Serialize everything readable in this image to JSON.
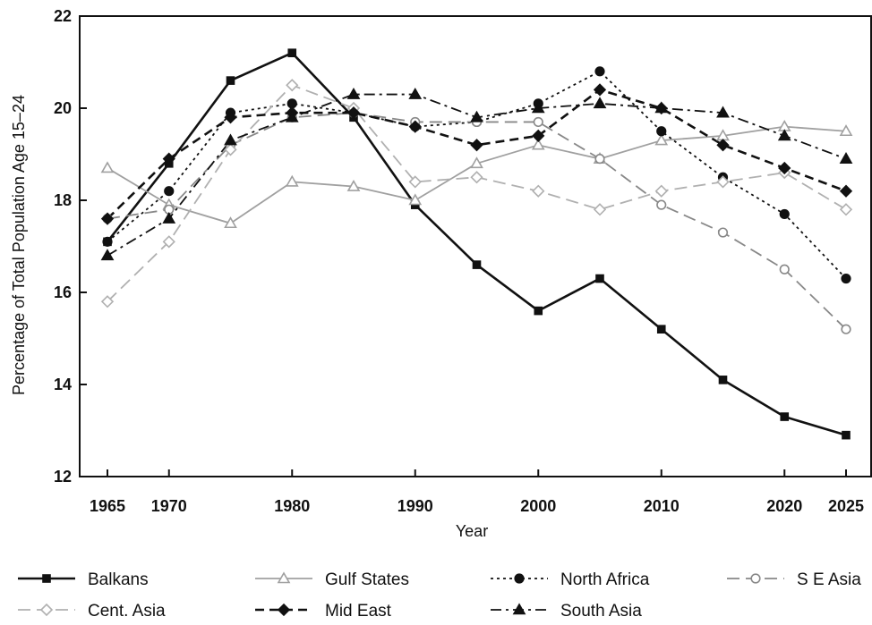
{
  "chart_data": {
    "type": "line",
    "title": "",
    "xlabel": "Year",
    "ylabel": "Percentage of Total Population Age 15–24",
    "ylim": [
      12,
      22
    ],
    "yticks": [
      12,
      14,
      16,
      18,
      20,
      22
    ],
    "xticks": [
      1965,
      1970,
      1980,
      1990,
      2000,
      2010,
      2020,
      2025
    ],
    "x": [
      1965,
      1970,
      1975,
      1980,
      1985,
      1990,
      1995,
      2000,
      2005,
      2010,
      2015,
      2020,
      2025
    ],
    "grid": false,
    "legend_position": "bottom",
    "series": [
      {
        "name": "Balkans",
        "color": "#111111",
        "dash": "solid",
        "marker": "filled-square",
        "stroke_width": "heavy",
        "values": [
          17.1,
          18.8,
          20.6,
          21.2,
          19.8,
          17.9,
          16.6,
          15.6,
          16.3,
          15.2,
          14.1,
          13.3,
          12.9
        ]
      },
      {
        "name": "Gulf States",
        "color": "#a0a0a0",
        "dash": "solid",
        "marker": "open-triangle",
        "stroke_width": "normal",
        "values": [
          18.7,
          17.9,
          17.5,
          18.4,
          18.3,
          18.0,
          18.8,
          19.2,
          18.9,
          19.3,
          19.4,
          19.6,
          19.5
        ]
      },
      {
        "name": "North Africa",
        "color": "#111111",
        "dash": "dotted",
        "marker": "filled-circle",
        "stroke_width": "normal",
        "values": [
          17.1,
          18.2,
          19.9,
          20.1,
          19.9,
          19.6,
          19.7,
          20.1,
          20.8,
          19.5,
          18.5,
          17.7,
          16.3
        ]
      },
      {
        "name": "S E Asia",
        "color": "#888888",
        "dash": "long-dash",
        "marker": "open-circle",
        "stroke_width": "normal",
        "values": [
          17.6,
          17.8,
          19.2,
          19.8,
          19.9,
          19.7,
          19.7,
          19.7,
          18.9,
          17.9,
          17.3,
          16.5,
          15.2
        ]
      },
      {
        "name": "Cent. Asia",
        "color": "#b0b0b0",
        "dash": "long-dash",
        "marker": "open-diamond",
        "stroke_width": "normal",
        "values": [
          15.8,
          17.1,
          19.1,
          20.5,
          20.0,
          18.4,
          18.5,
          18.2,
          17.8,
          18.2,
          18.4,
          18.6,
          17.8
        ]
      },
      {
        "name": "Mid East",
        "color": "#111111",
        "dash": "dash",
        "marker": "filled-diamond",
        "stroke_width": "heavy",
        "values": [
          17.6,
          18.9,
          19.8,
          19.9,
          19.9,
          19.6,
          19.2,
          19.4,
          20.4,
          20.0,
          19.2,
          18.7,
          18.2
        ]
      },
      {
        "name": "South Asia",
        "color": "#111111",
        "dash": "dash-dot",
        "marker": "filled-triangle",
        "stroke_width": "normal",
        "values": [
          16.8,
          17.6,
          19.3,
          19.8,
          20.3,
          20.3,
          19.8,
          20.0,
          20.1,
          20.0,
          19.9,
          19.4,
          18.9
        ]
      }
    ]
  }
}
